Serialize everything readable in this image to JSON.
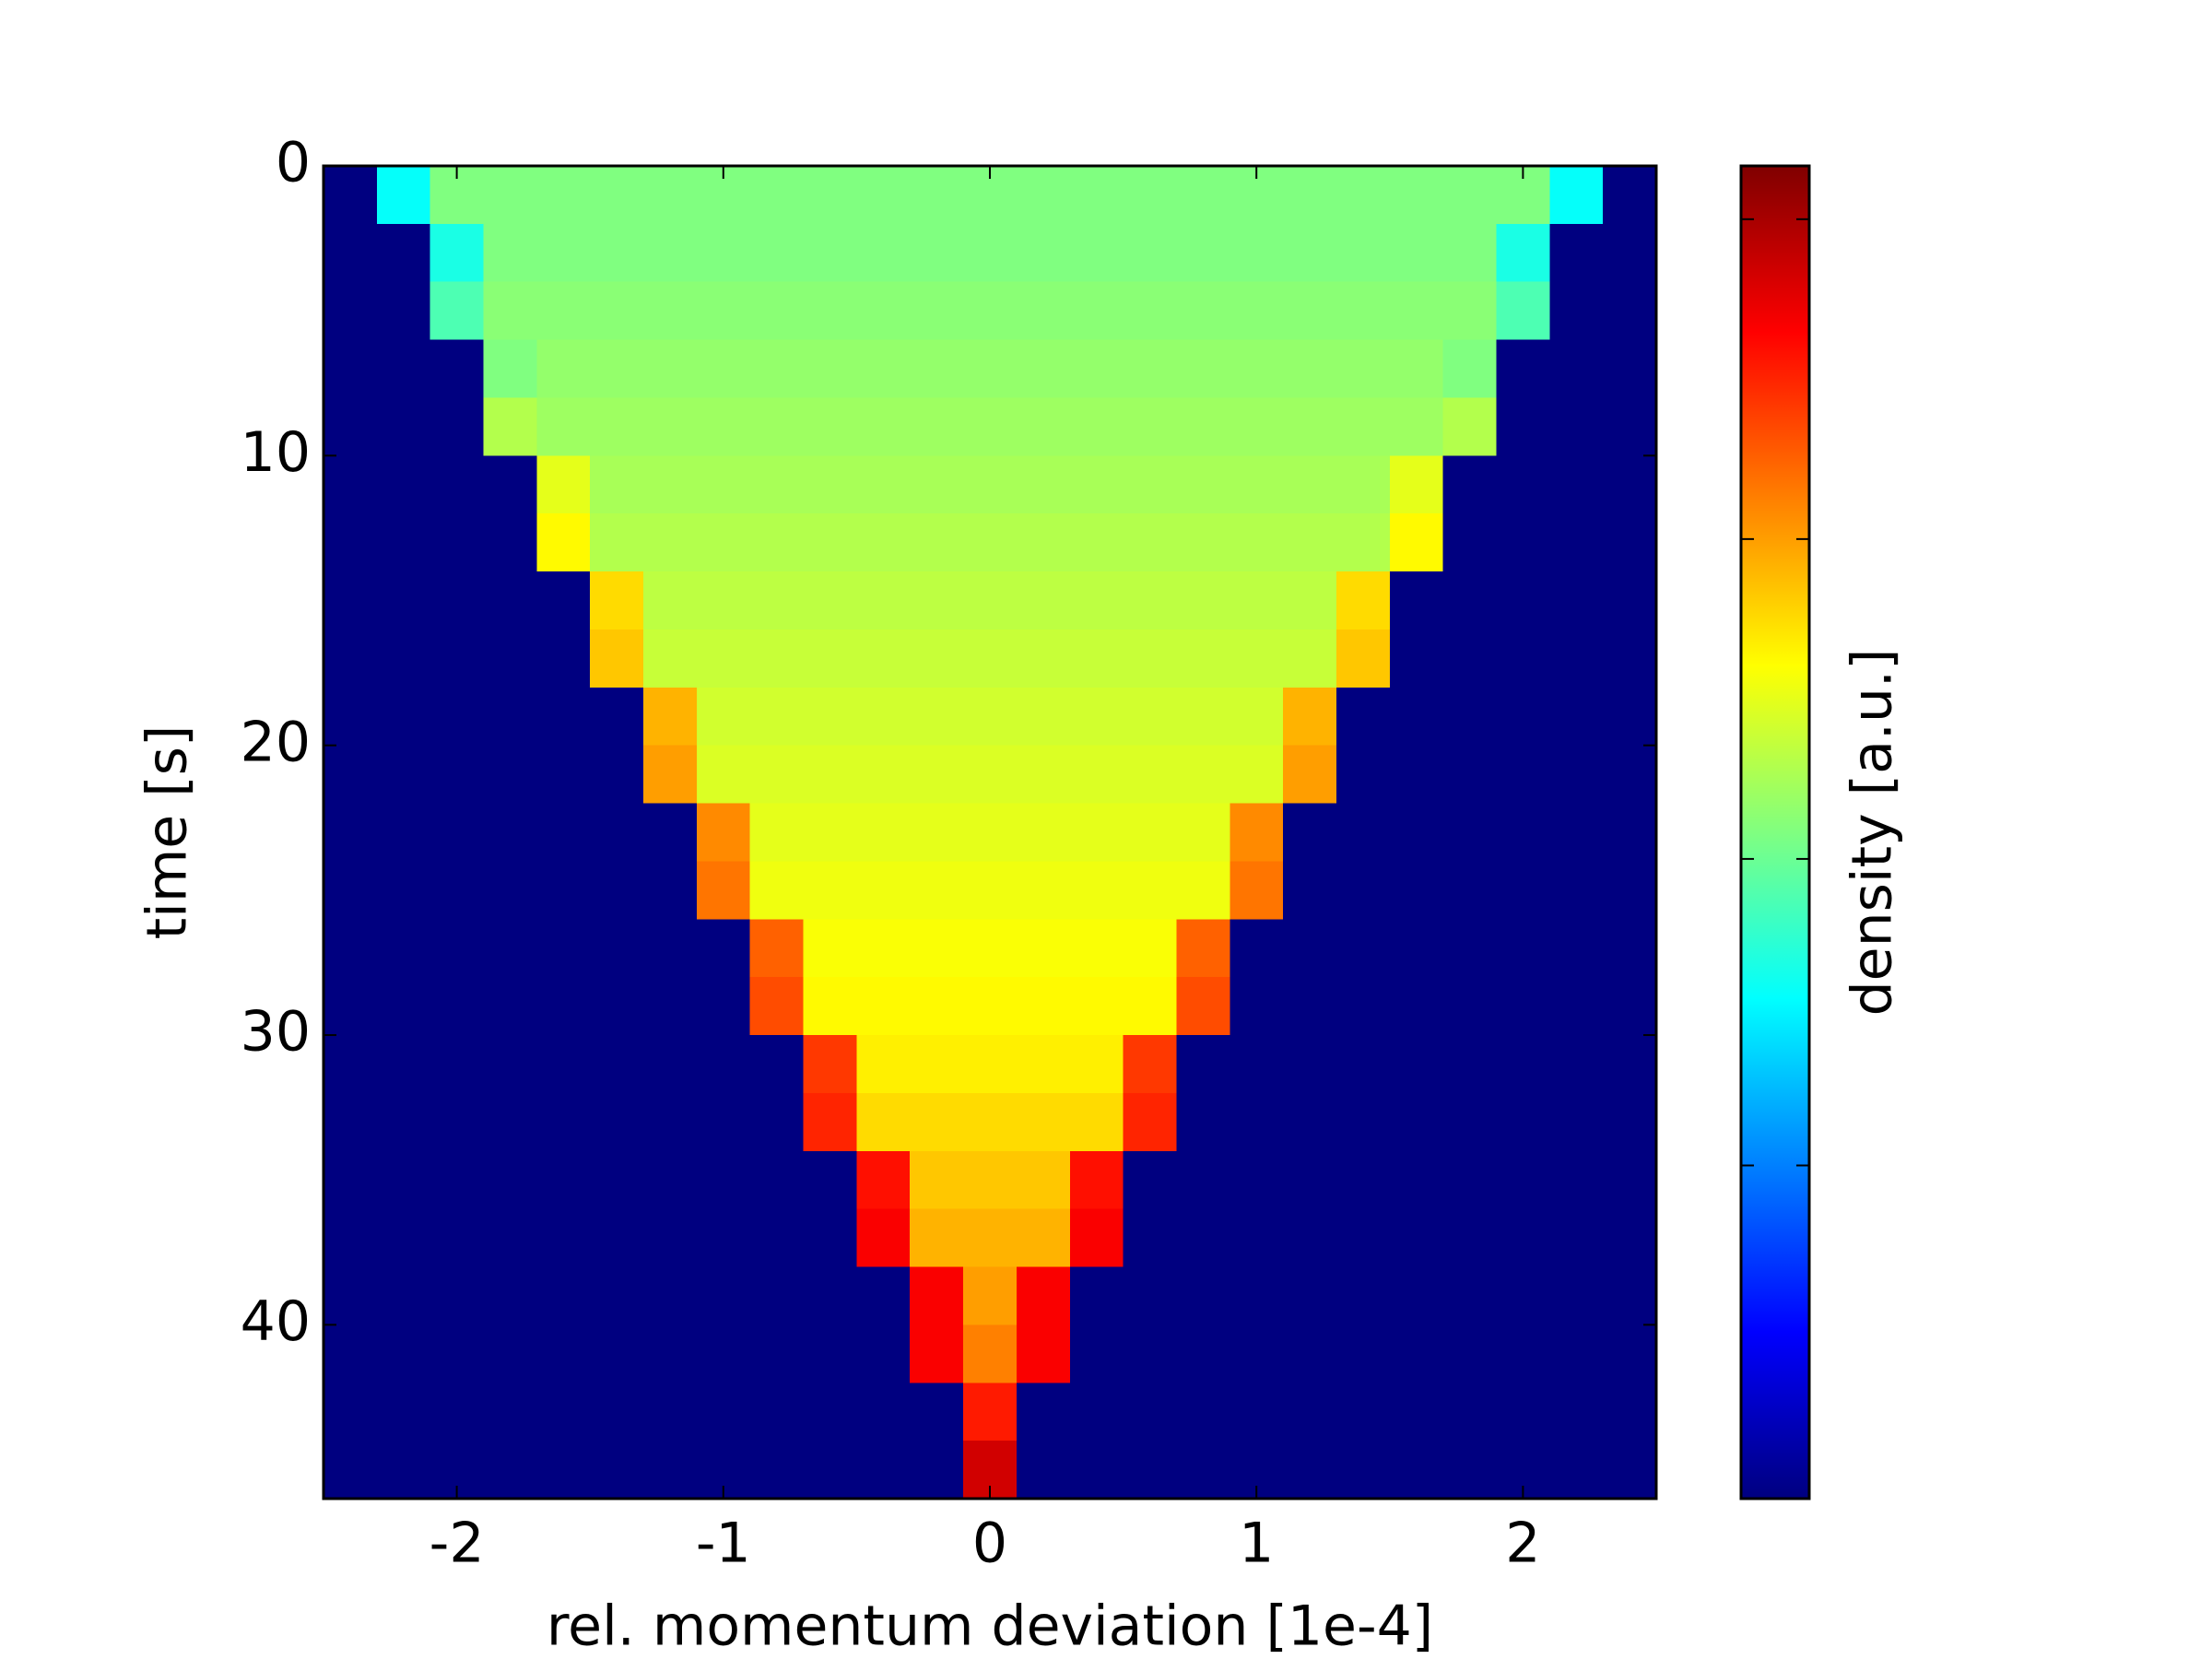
{
  "chart_data": {
    "type": "heatmap",
    "xlabel": "rel. momentum deviation [1e-4]",
    "ylabel": "time [s]",
    "colorbar_label": "density [a.u.]",
    "colormap": "jet",
    "xlim": [
      -2.5,
      2.5
    ],
    "xticks": [
      -2,
      -1,
      0,
      1,
      2
    ],
    "ylim": [
      46,
      0
    ],
    "yticks": [
      0,
      10,
      20,
      30,
      40
    ],
    "clim": [
      0,
      1
    ],
    "colorbar_ticks": [
      0.25,
      0.48,
      0.72,
      0.96
    ],
    "xbins": [
      -2.5,
      -2.3,
      -2.1,
      -1.9,
      -1.7,
      -1.5,
      -1.3,
      -1.1,
      -0.9,
      -0.7,
      -0.5,
      -0.3,
      -0.1,
      0.1,
      0.3,
      0.5,
      0.7,
      0.9,
      1.1,
      1.3,
      1.5,
      1.7,
      1.9,
      2.1,
      2.3,
      2.5
    ],
    "ybins": [
      0,
      2,
      4,
      6,
      8,
      10,
      12,
      14,
      16,
      18,
      20,
      22,
      24,
      26,
      28,
      30,
      32,
      34,
      36,
      38,
      40,
      42,
      44,
      46
    ],
    "z": [
      [
        0,
        0.38,
        0.5,
        0.5,
        0.5,
        0.5,
        0.5,
        0.5,
        0.5,
        0.5,
        0.5,
        0.5,
        0.5,
        0.5,
        0.5,
        0.5,
        0.5,
        0.5,
        0.5,
        0.5,
        0.5,
        0.5,
        0.5,
        0.38,
        0
      ],
      [
        0,
        0,
        0.4,
        0.5,
        0.5,
        0.5,
        0.5,
        0.5,
        0.5,
        0.5,
        0.5,
        0.5,
        0.5,
        0.5,
        0.5,
        0.5,
        0.5,
        0.5,
        0.5,
        0.5,
        0.5,
        0.5,
        0.4,
        0,
        0
      ],
      [
        0,
        0,
        0.45,
        0.51,
        0.51,
        0.51,
        0.51,
        0.51,
        0.51,
        0.51,
        0.51,
        0.51,
        0.51,
        0.51,
        0.51,
        0.51,
        0.51,
        0.51,
        0.51,
        0.51,
        0.51,
        0.51,
        0.45,
        0,
        0
      ],
      [
        0,
        0,
        0,
        0.5,
        0.52,
        0.52,
        0.52,
        0.52,
        0.52,
        0.52,
        0.52,
        0.52,
        0.52,
        0.52,
        0.52,
        0.52,
        0.52,
        0.52,
        0.52,
        0.52,
        0.52,
        0.5,
        0,
        0,
        0
      ],
      [
        0,
        0,
        0,
        0.55,
        0.53,
        0.53,
        0.53,
        0.53,
        0.53,
        0.53,
        0.53,
        0.53,
        0.53,
        0.53,
        0.53,
        0.53,
        0.53,
        0.53,
        0.53,
        0.53,
        0.53,
        0.55,
        0,
        0,
        0
      ],
      [
        0,
        0,
        0,
        0,
        0.6,
        0.54,
        0.54,
        0.54,
        0.54,
        0.54,
        0.54,
        0.54,
        0.54,
        0.54,
        0.54,
        0.54,
        0.54,
        0.54,
        0.54,
        0.54,
        0.6,
        0,
        0,
        0,
        0
      ],
      [
        0,
        0,
        0,
        0,
        0.63,
        0.55,
        0.55,
        0.55,
        0.55,
        0.55,
        0.55,
        0.55,
        0.55,
        0.55,
        0.55,
        0.55,
        0.55,
        0.55,
        0.55,
        0.55,
        0.63,
        0,
        0,
        0,
        0
      ],
      [
        0,
        0,
        0,
        0,
        0,
        0.66,
        0.56,
        0.56,
        0.56,
        0.56,
        0.56,
        0.56,
        0.56,
        0.56,
        0.56,
        0.56,
        0.56,
        0.56,
        0.56,
        0.66,
        0,
        0,
        0,
        0,
        0
      ],
      [
        0,
        0,
        0,
        0,
        0,
        0.68,
        0.57,
        0.57,
        0.57,
        0.57,
        0.57,
        0.57,
        0.57,
        0.57,
        0.57,
        0.57,
        0.57,
        0.57,
        0.57,
        0.68,
        0,
        0,
        0,
        0,
        0
      ],
      [
        0,
        0,
        0,
        0,
        0,
        0,
        0.7,
        0.58,
        0.58,
        0.58,
        0.58,
        0.58,
        0.58,
        0.58,
        0.58,
        0.58,
        0.58,
        0.58,
        0.7,
        0,
        0,
        0,
        0,
        0,
        0
      ],
      [
        0,
        0,
        0,
        0,
        0,
        0,
        0.72,
        0.59,
        0.59,
        0.59,
        0.59,
        0.59,
        0.59,
        0.59,
        0.59,
        0.59,
        0.59,
        0.59,
        0.72,
        0,
        0,
        0,
        0,
        0,
        0
      ],
      [
        0,
        0,
        0,
        0,
        0,
        0,
        0,
        0.74,
        0.6,
        0.6,
        0.6,
        0.6,
        0.6,
        0.6,
        0.6,
        0.6,
        0.6,
        0.74,
        0,
        0,
        0,
        0,
        0,
        0,
        0
      ],
      [
        0,
        0,
        0,
        0,
        0,
        0,
        0,
        0.76,
        0.61,
        0.61,
        0.61,
        0.61,
        0.61,
        0.61,
        0.61,
        0.61,
        0.61,
        0.76,
        0,
        0,
        0,
        0,
        0,
        0,
        0
      ],
      [
        0,
        0,
        0,
        0,
        0,
        0,
        0,
        0,
        0.78,
        0.62,
        0.62,
        0.62,
        0.62,
        0.62,
        0.62,
        0.62,
        0.78,
        0,
        0,
        0,
        0,
        0,
        0,
        0,
        0
      ],
      [
        0,
        0,
        0,
        0,
        0,
        0,
        0,
        0,
        0.8,
        0.63,
        0.63,
        0.63,
        0.63,
        0.63,
        0.63,
        0.63,
        0.8,
        0,
        0,
        0,
        0,
        0,
        0,
        0,
        0
      ],
      [
        0,
        0,
        0,
        0,
        0,
        0,
        0,
        0,
        0,
        0.82,
        0.64,
        0.64,
        0.64,
        0.64,
        0.64,
        0.82,
        0,
        0,
        0,
        0,
        0,
        0,
        0,
        0,
        0
      ],
      [
        0,
        0,
        0,
        0,
        0,
        0,
        0,
        0,
        0,
        0.84,
        0.66,
        0.66,
        0.66,
        0.66,
        0.66,
        0.84,
        0,
        0,
        0,
        0,
        0,
        0,
        0,
        0,
        0
      ],
      [
        0,
        0,
        0,
        0,
        0,
        0,
        0,
        0,
        0,
        0,
        0.86,
        0.68,
        0.68,
        0.68,
        0.86,
        0,
        0,
        0,
        0,
        0,
        0,
        0,
        0,
        0,
        0
      ],
      [
        0,
        0,
        0,
        0,
        0,
        0,
        0,
        0,
        0,
        0,
        0.88,
        0.7,
        0.7,
        0.7,
        0.88,
        0,
        0,
        0,
        0,
        0,
        0,
        0,
        0,
        0,
        0
      ],
      [
        0,
        0,
        0,
        0,
        0,
        0,
        0,
        0,
        0,
        0,
        0,
        0.88,
        0.72,
        0.88,
        0,
        0,
        0,
        0,
        0,
        0,
        0,
        0,
        0,
        0,
        0
      ],
      [
        0,
        0,
        0,
        0,
        0,
        0,
        0,
        0,
        0,
        0,
        0,
        0.88,
        0.75,
        0.88,
        0,
        0,
        0,
        0,
        0,
        0,
        0,
        0,
        0,
        0,
        0
      ],
      [
        0,
        0,
        0,
        0,
        0,
        0,
        0,
        0,
        0,
        0,
        0,
        0,
        0.85,
        0,
        0,
        0,
        0,
        0,
        0,
        0,
        0,
        0,
        0,
        0,
        0
      ],
      [
        0,
        0,
        0,
        0,
        0,
        0,
        0,
        0,
        0,
        0,
        0,
        0,
        0.92,
        0,
        0,
        0,
        0,
        0,
        0,
        0,
        0,
        0,
        0,
        0,
        0
      ]
    ]
  }
}
